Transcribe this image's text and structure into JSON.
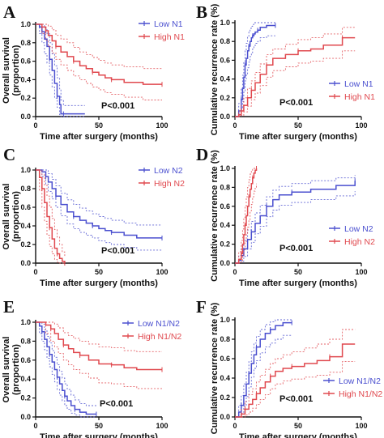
{
  "colors": {
    "low": "#4a4fcf",
    "high": "#e0484e",
    "axis": "#111111"
  },
  "chart_data": [
    {
      "panel": "A",
      "type": "line",
      "subtype": "kaplan-meier survival",
      "ylabel": "Overall survival (proportion)",
      "xlabel": "Time after surgery (months)",
      "xlim": [
        0,
        100
      ],
      "ylim": [
        0,
        1.0
      ],
      "xticks": [
        "0",
        "50",
        "100"
      ],
      "yticks": [
        "0.0",
        "0.2",
        "0.4",
        "0.6",
        "0.8",
        "1.0"
      ],
      "pvalue": "P<0.001",
      "legend_position": "top-right",
      "series": [
        {
          "name": "Low N1",
          "color_key": "low",
          "x": [
            0,
            3,
            5,
            7,
            9,
            11,
            13,
            15,
            17,
            19,
            20,
            22,
            39
          ],
          "y": [
            1.0,
            0.97,
            0.92,
            0.84,
            0.76,
            0.62,
            0.5,
            0.36,
            0.22,
            0.13,
            0.03,
            0.03,
            0.03
          ],
          "ci_upper": [
            1.0,
            1.0,
            1.0,
            0.96,
            0.9,
            0.8,
            0.68,
            0.55,
            0.42,
            0.3,
            0.18,
            0.12,
            0.12
          ],
          "ci_lower": [
            1.0,
            0.9,
            0.8,
            0.68,
            0.58,
            0.45,
            0.32,
            0.2,
            0.1,
            0.02,
            0.0,
            0.0,
            0.0
          ]
        },
        {
          "name": "High N1",
          "color_key": "high",
          "x": [
            0,
            5,
            8,
            10,
            13,
            16,
            20,
            25,
            30,
            35,
            40,
            45,
            50,
            55,
            60,
            70,
            85,
            100
          ],
          "y": [
            1.0,
            0.97,
            0.93,
            0.88,
            0.82,
            0.76,
            0.7,
            0.65,
            0.6,
            0.55,
            0.52,
            0.48,
            0.45,
            0.42,
            0.4,
            0.37,
            0.35,
            0.35
          ],
          "ci_upper": [
            1.0,
            1.0,
            1.0,
            0.98,
            0.94,
            0.88,
            0.84,
            0.8,
            0.75,
            0.7,
            0.67,
            0.64,
            0.61,
            0.58,
            0.56,
            0.54,
            0.52,
            0.52
          ],
          "ci_lower": [
            1.0,
            0.9,
            0.83,
            0.76,
            0.69,
            0.62,
            0.56,
            0.5,
            0.44,
            0.4,
            0.36,
            0.32,
            0.29,
            0.26,
            0.24,
            0.21,
            0.18,
            0.18
          ]
        }
      ]
    },
    {
      "panel": "B",
      "type": "line",
      "subtype": "kaplan-meier cumulative incidence",
      "ylabel": "Cumulative recurrence rate (%)",
      "xlabel": "Time after surgery (months)",
      "xlim": [
        0,
        100
      ],
      "ylim": [
        0,
        1.0
      ],
      "xticks": [
        "0",
        "50",
        "100"
      ],
      "yticks": [
        "0.0",
        "0.2",
        "0.4",
        "0.6",
        "0.8",
        "1.0"
      ],
      "pvalue": "P<0.001",
      "legend_position": "right",
      "series": [
        {
          "name": "Low N1",
          "color_key": "low",
          "x": [
            0,
            3,
            5,
            6,
            7,
            8,
            9,
            10,
            11,
            12,
            13,
            14,
            15,
            16,
            18,
            20,
            25,
            32
          ],
          "y": [
            0.0,
            0.06,
            0.18,
            0.3,
            0.42,
            0.55,
            0.62,
            0.7,
            0.75,
            0.8,
            0.84,
            0.86,
            0.88,
            0.9,
            0.92,
            0.95,
            0.97,
            0.97
          ],
          "ci_upper": [
            0.0,
            0.14,
            0.3,
            0.44,
            0.58,
            0.7,
            0.78,
            0.85,
            0.9,
            0.94,
            0.96,
            0.98,
            1.0,
            1.0,
            1.0,
            1.0,
            1.0,
            1.0
          ],
          "ci_lower": [
            0.0,
            0.0,
            0.08,
            0.16,
            0.26,
            0.38,
            0.45,
            0.52,
            0.58,
            0.64,
            0.68,
            0.72,
            0.75,
            0.78,
            0.8,
            0.84,
            0.86,
            0.86
          ]
        },
        {
          "name": "High N1",
          "color_key": "high",
          "x": [
            0,
            3,
            5,
            7,
            10,
            13,
            16,
            20,
            25,
            30,
            40,
            50,
            60,
            70,
            85,
            95
          ],
          "y": [
            0.0,
            0.02,
            0.06,
            0.12,
            0.2,
            0.28,
            0.36,
            0.45,
            0.55,
            0.62,
            0.66,
            0.7,
            0.72,
            0.76,
            0.84,
            0.84
          ],
          "ci_upper": [
            0.0,
            0.06,
            0.12,
            0.2,
            0.3,
            0.38,
            0.47,
            0.56,
            0.66,
            0.72,
            0.77,
            0.82,
            0.84,
            0.88,
            0.95,
            0.95
          ],
          "ci_lower": [
            0.0,
            0.0,
            0.01,
            0.05,
            0.11,
            0.18,
            0.25,
            0.33,
            0.42,
            0.49,
            0.53,
            0.57,
            0.59,
            0.62,
            0.7,
            0.7
          ]
        }
      ]
    },
    {
      "panel": "C",
      "type": "line",
      "subtype": "kaplan-meier survival",
      "ylabel": "Overall survival (proportion)",
      "xlabel": "Time after surgery (months)",
      "xlim": [
        0,
        100
      ],
      "ylim": [
        0,
        1.0
      ],
      "xticks": [
        "0",
        "50",
        "100"
      ],
      "yticks": [
        "0.0",
        "0.2",
        "0.4",
        "0.6",
        "0.8",
        "1.0"
      ],
      "pvalue": "P<0.001",
      "legend_position": "top-right",
      "series": [
        {
          "name": "Low N2",
          "color_key": "low",
          "x": [
            0,
            5,
            8,
            10,
            13,
            16,
            20,
            25,
            30,
            35,
            40,
            45,
            50,
            55,
            60,
            70,
            80,
            100
          ],
          "y": [
            1.0,
            0.98,
            0.93,
            0.87,
            0.8,
            0.72,
            0.63,
            0.55,
            0.5,
            0.46,
            0.43,
            0.4,
            0.37,
            0.35,
            0.33,
            0.3,
            0.27,
            0.27
          ],
          "ci_upper": [
            1.0,
            1.0,
            1.0,
            0.96,
            0.9,
            0.83,
            0.75,
            0.68,
            0.63,
            0.59,
            0.56,
            0.53,
            0.5,
            0.48,
            0.46,
            0.43,
            0.41,
            0.41
          ],
          "ci_lower": [
            1.0,
            0.93,
            0.85,
            0.77,
            0.69,
            0.6,
            0.51,
            0.42,
            0.37,
            0.33,
            0.3,
            0.27,
            0.24,
            0.22,
            0.2,
            0.17,
            0.14,
            0.14
          ]
        },
        {
          "name": "High N2",
          "color_key": "high",
          "x": [
            0,
            3,
            5,
            7,
            9,
            11,
            13,
            15,
            17,
            19,
            21,
            23
          ],
          "y": [
            1.0,
            0.92,
            0.8,
            0.65,
            0.5,
            0.38,
            0.26,
            0.16,
            0.1,
            0.05,
            0.02,
            0.0
          ],
          "ci_upper": [
            1.0,
            1.0,
            0.95,
            0.84,
            0.72,
            0.6,
            0.48,
            0.36,
            0.28,
            0.2,
            0.12,
            0.06
          ],
          "ci_lower": [
            1.0,
            0.78,
            0.6,
            0.45,
            0.3,
            0.18,
            0.1,
            0.04,
            0.01,
            0.0,
            0.0,
            0.0
          ]
        }
      ]
    },
    {
      "panel": "D",
      "type": "line",
      "subtype": "kaplan-meier cumulative incidence",
      "ylabel": "Cumulative recurrence rate (%)",
      "xlabel": "Time after surgery (months)",
      "xlim": [
        0,
        100
      ],
      "ylim": [
        0,
        1.0
      ],
      "xticks": [
        "0",
        "50",
        "100"
      ],
      "yticks": [
        "0.0",
        "0.2",
        "0.4",
        "0.6",
        "0.8",
        "1.0"
      ],
      "pvalue": "P<0.001",
      "legend_position": "bottom-right",
      "series": [
        {
          "name": "Low N2",
          "color_key": "low",
          "x": [
            0,
            3,
            5,
            7,
            10,
            13,
            16,
            20,
            25,
            30,
            35,
            45,
            60,
            80,
            95
          ],
          "y": [
            0.0,
            0.03,
            0.08,
            0.15,
            0.25,
            0.33,
            0.42,
            0.5,
            0.6,
            0.67,
            0.72,
            0.75,
            0.78,
            0.82,
            0.87
          ],
          "ci_upper": [
            0.0,
            0.08,
            0.15,
            0.24,
            0.35,
            0.44,
            0.53,
            0.61,
            0.7,
            0.77,
            0.81,
            0.84,
            0.87,
            0.9,
            0.93
          ],
          "ci_lower": [
            0.0,
            0.0,
            0.02,
            0.07,
            0.15,
            0.22,
            0.31,
            0.39,
            0.49,
            0.56,
            0.61,
            0.64,
            0.67,
            0.71,
            0.76
          ]
        },
        {
          "name": "High N2",
          "color_key": "high",
          "x": [
            0,
            3,
            5,
            6,
            7,
            8,
            9,
            10,
            11,
            12,
            13,
            14,
            15,
            16,
            17
          ],
          "y": [
            0.0,
            0.04,
            0.1,
            0.2,
            0.3,
            0.4,
            0.5,
            0.6,
            0.7,
            0.78,
            0.84,
            0.9,
            0.95,
            0.98,
            1.0
          ],
          "ci_upper": [
            0.0,
            0.12,
            0.24,
            0.36,
            0.48,
            0.6,
            0.7,
            0.8,
            0.88,
            0.94,
            0.98,
            1.0,
            1.0,
            1.0,
            1.0
          ],
          "ci_lower": [
            0.0,
            0.0,
            0.02,
            0.07,
            0.14,
            0.22,
            0.3,
            0.38,
            0.46,
            0.55,
            0.62,
            0.7,
            0.76,
            0.8,
            0.84
          ]
        }
      ]
    },
    {
      "panel": "E",
      "type": "line",
      "subtype": "kaplan-meier survival",
      "ylabel": "Overall survival (proportion)",
      "xlabel": "Time after surgery (months)",
      "xlim": [
        0,
        100
      ],
      "ylim": [
        0,
        1.0
      ],
      "xticks": [
        "0",
        "50",
        "100"
      ],
      "yticks": [
        "0.0",
        "0.2",
        "0.4",
        "0.6",
        "0.8",
        "1.0"
      ],
      "pvalue": "P<0.001",
      "legend_position": "top-right",
      "series": [
        {
          "name": "Low N1/N2",
          "color_key": "low",
          "x": [
            0,
            3,
            5,
            7,
            9,
            11,
            13,
            15,
            17,
            19,
            21,
            23,
            25,
            28,
            31,
            35,
            40,
            48
          ],
          "y": [
            1.0,
            0.96,
            0.9,
            0.82,
            0.74,
            0.66,
            0.58,
            0.5,
            0.42,
            0.35,
            0.28,
            0.22,
            0.17,
            0.12,
            0.08,
            0.05,
            0.03,
            0.03
          ],
          "ci_upper": [
            1.0,
            1.0,
            0.98,
            0.92,
            0.85,
            0.78,
            0.7,
            0.63,
            0.55,
            0.48,
            0.41,
            0.35,
            0.29,
            0.23,
            0.18,
            0.14,
            0.12,
            0.12
          ],
          "ci_lower": [
            1.0,
            0.88,
            0.8,
            0.71,
            0.62,
            0.53,
            0.45,
            0.37,
            0.29,
            0.23,
            0.17,
            0.12,
            0.08,
            0.04,
            0.02,
            0.0,
            0.0,
            0.0
          ]
        },
        {
          "name": "High N1/N2",
          "color_key": "high",
          "x": [
            0,
            8,
            12,
            15,
            18,
            22,
            26,
            30,
            35,
            42,
            50,
            60,
            70,
            80,
            100
          ],
          "y": [
            1.0,
            0.97,
            0.93,
            0.88,
            0.82,
            0.76,
            0.72,
            0.68,
            0.65,
            0.6,
            0.56,
            0.55,
            0.52,
            0.5,
            0.5
          ],
          "ci_upper": [
            1.0,
            1.0,
            1.0,
            0.98,
            0.94,
            0.89,
            0.86,
            0.83,
            0.8,
            0.77,
            0.74,
            0.73,
            0.7,
            0.69,
            0.69
          ],
          "ci_lower": [
            1.0,
            0.88,
            0.8,
            0.74,
            0.67,
            0.6,
            0.55,
            0.5,
            0.46,
            0.41,
            0.36,
            0.35,
            0.32,
            0.3,
            0.3
          ]
        }
      ]
    },
    {
      "panel": "F",
      "type": "line",
      "subtype": "kaplan-meier cumulative incidence",
      "ylabel": "Cumulative recurrence rate (%)",
      "xlabel": "Time after surgery (months)",
      "xlim": [
        0,
        100
      ],
      "ylim": [
        0,
        1.0
      ],
      "xticks": [
        "0",
        "50",
        "100"
      ],
      "yticks": [
        "0.0",
        "0.2",
        "0.4",
        "0.6",
        "0.8",
        "1.0"
      ],
      "pvalue": "P<0.001",
      "legend_position": "bottom-right",
      "series": [
        {
          "name": "Low N1/N2",
          "color_key": "low",
          "x": [
            0,
            3,
            5,
            7,
            9,
            11,
            13,
            15,
            17,
            20,
            24,
            28,
            32,
            38,
            45
          ],
          "y": [
            0.0,
            0.05,
            0.12,
            0.22,
            0.34,
            0.45,
            0.55,
            0.64,
            0.72,
            0.8,
            0.86,
            0.9,
            0.94,
            0.97,
            0.97
          ],
          "ci_upper": [
            0.0,
            0.12,
            0.22,
            0.34,
            0.46,
            0.57,
            0.67,
            0.76,
            0.83,
            0.9,
            0.95,
            0.98,
            1.0,
            1.0,
            1.0
          ],
          "ci_lower": [
            0.0,
            0.0,
            0.04,
            0.11,
            0.21,
            0.31,
            0.41,
            0.5,
            0.58,
            0.66,
            0.72,
            0.76,
            0.8,
            0.84,
            0.84
          ]
        },
        {
          "name": "High N1/N2",
          "color_key": "high",
          "x": [
            0,
            5,
            8,
            11,
            14,
            17,
            20,
            24,
            28,
            32,
            38,
            45,
            55,
            65,
            75,
            85,
            95
          ],
          "y": [
            0.0,
            0.03,
            0.08,
            0.13,
            0.18,
            0.24,
            0.3,
            0.36,
            0.42,
            0.47,
            0.5,
            0.52,
            0.55,
            0.58,
            0.62,
            0.75,
            0.75
          ],
          "ci_upper": [
            0.0,
            0.08,
            0.16,
            0.23,
            0.29,
            0.36,
            0.43,
            0.49,
            0.55,
            0.6,
            0.64,
            0.67,
            0.71,
            0.75,
            0.8,
            0.9,
            0.9
          ],
          "ci_lower": [
            0.0,
            0.0,
            0.02,
            0.05,
            0.09,
            0.13,
            0.18,
            0.23,
            0.29,
            0.34,
            0.37,
            0.39,
            0.41,
            0.43,
            0.46,
            0.57,
            0.57
          ]
        }
      ]
    }
  ]
}
